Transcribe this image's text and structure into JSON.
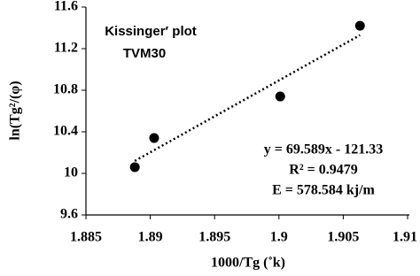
{
  "chart_data": {
    "type": "scatter",
    "x_label": "1000/Tg (˚k)",
    "y_label": "ln(Tg²/(φ)",
    "annotations": [
      "Kissinger′ plot",
      "TVM30",
      "y = 69.589x - 121.33",
      "R² = 0.9479",
      "E = 578.584 kj/m"
    ],
    "x": [
      1.8888,
      1.8903,
      1.9001,
      1.9063
    ],
    "values": [
      10.06,
      10.34,
      10.74,
      11.42
    ],
    "color": "#000000",
    "trendline": {
      "x": [
        1.8888,
        1.9063
      ],
      "values": [
        10.12,
        11.33
      ]
    },
    "xlim": [
      1.885,
      1.91
    ],
    "xticks": [
      1.885,
      1.89,
      1.895,
      1.9,
      1.905,
      1.91
    ],
    "ylim": [
      9.6,
      11.6
    ],
    "yticks": [
      9.6,
      10,
      10.4,
      10.8,
      11.2,
      11.6
    ],
    "grid": false
  }
}
